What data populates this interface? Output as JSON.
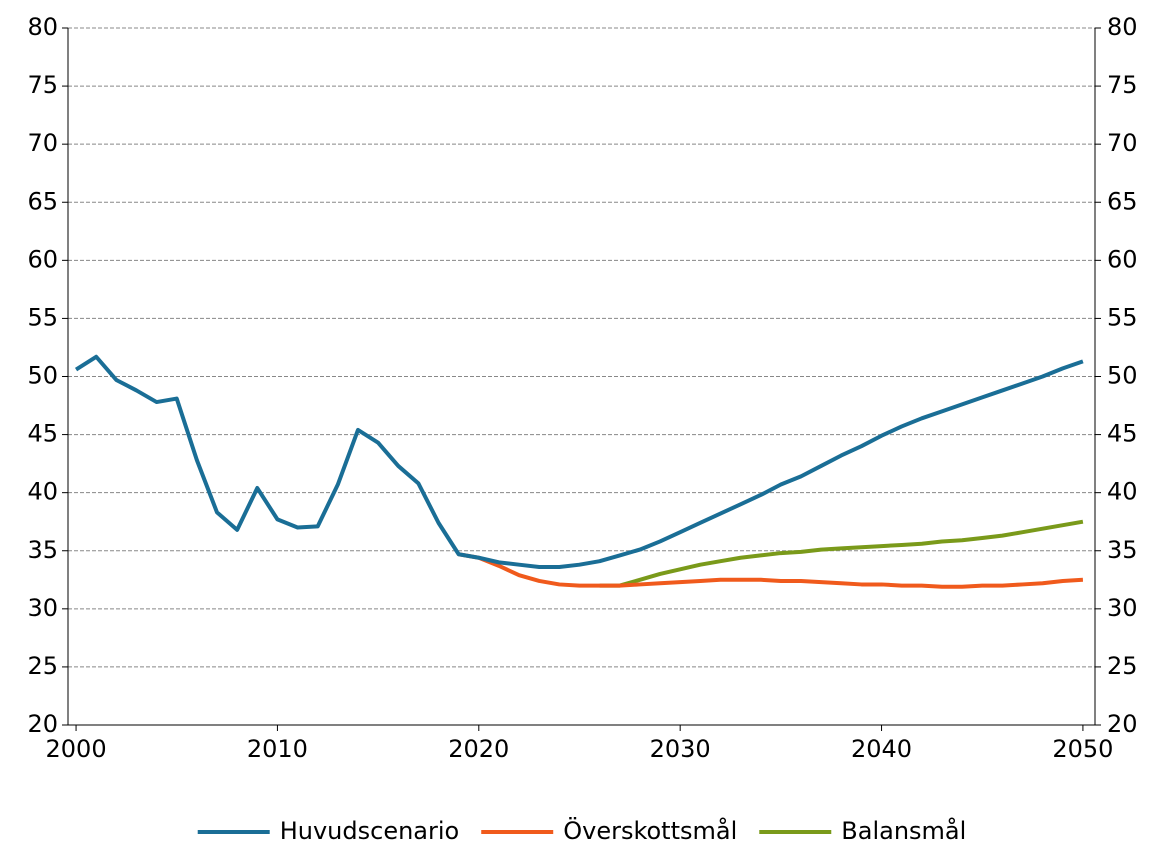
{
  "chart_data": {
    "type": "line",
    "x": [
      2000,
      2001,
      2002,
      2003,
      2004,
      2005,
      2006,
      2007,
      2008,
      2009,
      2010,
      2011,
      2012,
      2013,
      2014,
      2015,
      2016,
      2017,
      2018,
      2019,
      2020,
      2021,
      2022,
      2023,
      2024,
      2025,
      2026,
      2027,
      2028,
      2029,
      2030,
      2031,
      2032,
      2033,
      2034,
      2035,
      2036,
      2037,
      2038,
      2039,
      2040,
      2041,
      2042,
      2043,
      2044,
      2045,
      2046,
      2047,
      2048,
      2049,
      2050
    ],
    "series": [
      {
        "name": "Huvudscenario",
        "color": "#1a6e96",
        "values": [
          50.6,
          51.7,
          49.7,
          48.8,
          47.8,
          48.1,
          42.8,
          38.3,
          36.8,
          40.4,
          37.7,
          37.0,
          37.1,
          40.7,
          45.4,
          44.3,
          42.3,
          40.8,
          37.4,
          34.7,
          34.4,
          34.0,
          33.8,
          33.6,
          33.6,
          33.8,
          34.1,
          34.6,
          35.1,
          35.8,
          36.6,
          37.4,
          38.2,
          39.0,
          39.8,
          40.7,
          41.4,
          42.3,
          43.2,
          44.0,
          44.9,
          45.7,
          46.4,
          47.0,
          47.6,
          48.2,
          48.8,
          49.4,
          50.0,
          50.7,
          51.3
        ]
      },
      {
        "name": "Överskottsmål",
        "color": "#f05a1c",
        "values": [
          null,
          null,
          null,
          null,
          null,
          null,
          null,
          null,
          null,
          null,
          null,
          null,
          null,
          null,
          null,
          null,
          null,
          null,
          null,
          34.7,
          34.4,
          33.7,
          32.9,
          32.4,
          32.1,
          32.0,
          32.0,
          32.0,
          32.1,
          32.2,
          32.3,
          32.4,
          32.5,
          32.5,
          32.5,
          32.4,
          32.4,
          32.3,
          32.2,
          32.1,
          32.1,
          32.0,
          32.0,
          31.9,
          31.9,
          32.0,
          32.0,
          32.1,
          32.2,
          32.4,
          32.5
        ]
      },
      {
        "name": "Balansmål",
        "color": "#7a9a1a",
        "values": [
          null,
          null,
          null,
          null,
          null,
          null,
          null,
          null,
          null,
          null,
          null,
          null,
          null,
          null,
          null,
          null,
          null,
          null,
          null,
          null,
          null,
          null,
          null,
          null,
          null,
          null,
          32.0,
          32.0,
          32.5,
          33.0,
          33.4,
          33.8,
          34.1,
          34.4,
          34.6,
          34.8,
          34.9,
          35.1,
          35.2,
          35.3,
          35.4,
          35.5,
          35.6,
          35.8,
          35.9,
          36.1,
          36.3,
          36.6,
          36.9,
          37.2,
          37.5
        ]
      }
    ],
    "xlim": [
      1999.6,
      2050.6
    ],
    "xticks": [
      2000,
      2010,
      2020,
      2030,
      2040,
      2050
    ],
    "ylim": [
      20,
      80
    ],
    "yticks": [
      20,
      25,
      30,
      35,
      40,
      45,
      50,
      55,
      60,
      65,
      70,
      75,
      80
    ],
    "grid": true,
    "legend": "bottom"
  }
}
